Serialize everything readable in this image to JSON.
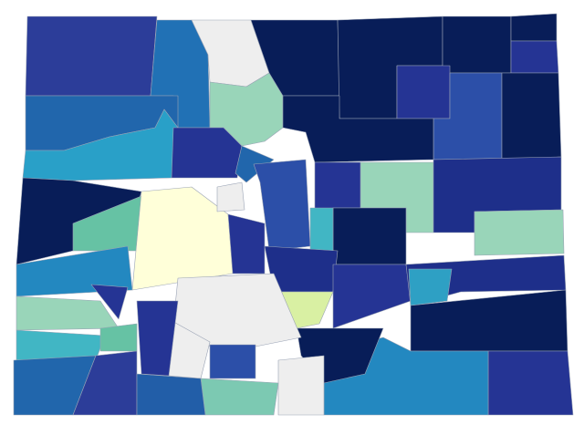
{
  "map": {
    "fills": [
      "#2c3d99",
      "#2171b5",
      "#eeeeee",
      "#99d5b9",
      "#081d58",
      "#081d58",
      "#081d58",
      "#081d58",
      "#253494",
      "#253494",
      "#2c4fa8",
      "#081d58",
      "#2166ac",
      "#29a0c8",
      "#253494",
      "#2166ac",
      "#2c4fa8",
      "#081d58",
      "#99d5b9",
      "#253494",
      "#1e2f8a",
      "#99d5b9",
      "#081d58",
      "#41b6c4",
      "#081d58",
      "#66c2a4",
      "#ffffd9",
      "#eeeeee",
      "#253494",
      "#1e2f8a",
      "#253494",
      "#1e2f8a",
      "#2ea0c4",
      "#081d58",
      "#253494",
      "#2388c0",
      "#081d58",
      "#d9f0a3",
      "#eeeeee",
      "#eeeeee",
      "#2c4fa8",
      "#7cc9b2",
      "#eeeeee",
      "#253494",
      "#2388c0",
      "#253494",
      "#99d5b9",
      "#41b6c4",
      "#66c2a4",
      "#2166ac",
      "#2c3d99",
      "#225ea8"
    ]
  }
}
